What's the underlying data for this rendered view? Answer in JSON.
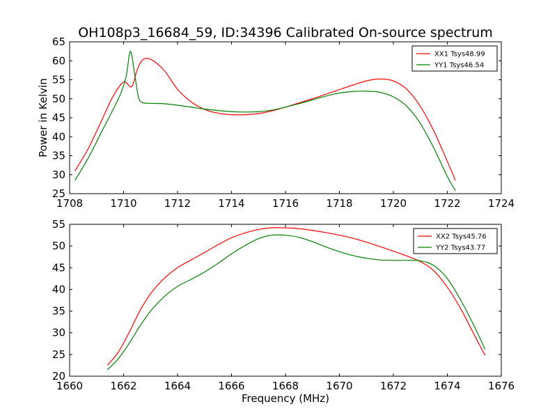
{
  "title": "OH108p3_16684_59, ID:34396 Calibrated On-source spectrum",
  "chart_data": [
    {
      "type": "line",
      "ylabel": "Power in Kelvin",
      "xlabel": "",
      "xlim": [
        1708,
        1724
      ],
      "ylim": [
        25,
        65
      ],
      "x_ticks": [
        1708,
        1710,
        1712,
        1714,
        1716,
        1718,
        1720,
        1722,
        1724
      ],
      "y_ticks": [
        25,
        30,
        35,
        40,
        45,
        50,
        55,
        60,
        65
      ],
      "legend_position": "top-right",
      "series": [
        {
          "name": "XX1 Tsys48.99",
          "color": "#ff0000",
          "points": [
            [
              1708.2,
              31
            ],
            [
              1708.7,
              37
            ],
            [
              1709.2,
              44.5
            ],
            [
              1709.6,
              50.5
            ],
            [
              1710.0,
              54.4
            ],
            [
              1710.3,
              53.2
            ],
            [
              1710.5,
              57.5
            ],
            [
              1710.7,
              60.2
            ],
            [
              1711.0,
              60.4
            ],
            [
              1711.5,
              57.5
            ],
            [
              1712.0,
              52.5
            ],
            [
              1712.5,
              49.2
            ],
            [
              1713.0,
              47.2
            ],
            [
              1713.5,
              46.2
            ],
            [
              1714.0,
              45.8
            ],
            [
              1714.5,
              45.8
            ],
            [
              1715.0,
              46.1
            ],
            [
              1715.5,
              46.8
            ],
            [
              1716.0,
              47.8
            ],
            [
              1716.5,
              48.9
            ],
            [
              1717.0,
              50.0
            ],
            [
              1717.5,
              51.2
            ],
            [
              1718.0,
              52.4
            ],
            [
              1718.5,
              53.6
            ],
            [
              1719.0,
              54.7
            ],
            [
              1719.5,
              55.2
            ],
            [
              1720.0,
              54.7
            ],
            [
              1720.5,
              52.5
            ],
            [
              1721.0,
              48.0
            ],
            [
              1721.5,
              41.5
            ],
            [
              1722.0,
              33.5
            ],
            [
              1722.3,
              28.5
            ]
          ]
        },
        {
          "name": "YY1 Tsys46.54",
          "color": "#008000",
          "points": [
            [
              1708.2,
              28.5
            ],
            [
              1708.7,
              34.5
            ],
            [
              1709.2,
              41.5
            ],
            [
              1709.6,
              47.0
            ],
            [
              1709.9,
              51.5
            ],
            [
              1710.1,
              56.0
            ],
            [
              1710.25,
              62.5
            ],
            [
              1710.4,
              57.0
            ],
            [
              1710.55,
              50.5
            ],
            [
              1710.7,
              49.0
            ],
            [
              1711.0,
              48.8
            ],
            [
              1711.5,
              48.7
            ],
            [
              1712.0,
              48.3
            ],
            [
              1712.5,
              47.8
            ],
            [
              1713.0,
              47.3
            ],
            [
              1713.5,
              46.9
            ],
            [
              1714.0,
              46.6
            ],
            [
              1714.5,
              46.5
            ],
            [
              1715.0,
              46.6
            ],
            [
              1715.5,
              47.0
            ],
            [
              1716.0,
              47.8
            ],
            [
              1716.5,
              48.7
            ],
            [
              1717.0,
              49.7
            ],
            [
              1717.5,
              50.7
            ],
            [
              1718.0,
              51.5
            ],
            [
              1718.5,
              51.9
            ],
            [
              1719.0,
              52.0
            ],
            [
              1719.5,
              51.7
            ],
            [
              1720.0,
              50.5
            ],
            [
              1720.5,
              48.0
            ],
            [
              1721.0,
              43.5
            ],
            [
              1721.5,
              37.0
            ],
            [
              1722.0,
              29.5
            ],
            [
              1722.3,
              25.8
            ]
          ]
        }
      ]
    },
    {
      "type": "line",
      "ylabel": "",
      "xlabel": "Frequency (MHz)",
      "xlim": [
        1660,
        1676
      ],
      "ylim": [
        20,
        55
      ],
      "x_ticks": [
        1660,
        1662,
        1664,
        1666,
        1668,
        1670,
        1672,
        1674,
        1676
      ],
      "y_ticks": [
        20,
        25,
        30,
        35,
        40,
        45,
        50,
        55
      ],
      "legend_position": "top-right",
      "series": [
        {
          "name": "XX2 Tsys45.76",
          "color": "#ff0000",
          "points": [
            [
              1661.4,
              22.5
            ],
            [
              1661.8,
              25.5
            ],
            [
              1662.2,
              30.0
            ],
            [
              1662.6,
              35.0
            ],
            [
              1663.0,
              39.0
            ],
            [
              1663.5,
              42.5
            ],
            [
              1664.0,
              45.0
            ],
            [
              1664.5,
              46.8
            ],
            [
              1665.0,
              48.5
            ],
            [
              1665.5,
              50.3
            ],
            [
              1666.0,
              51.9
            ],
            [
              1666.5,
              53.0
            ],
            [
              1667.0,
              53.8
            ],
            [
              1667.5,
              54.2
            ],
            [
              1668.0,
              54.2
            ],
            [
              1668.5,
              54.0
            ],
            [
              1669.0,
              53.6
            ],
            [
              1669.5,
              53.1
            ],
            [
              1670.0,
              52.5
            ],
            [
              1670.5,
              51.8
            ],
            [
              1671.0,
              50.9
            ],
            [
              1671.5,
              49.9
            ],
            [
              1672.0,
              48.8
            ],
            [
              1672.5,
              47.7
            ],
            [
              1673.0,
              46.4
            ],
            [
              1673.5,
              44.3
            ],
            [
              1674.0,
              40.5
            ],
            [
              1674.5,
              35.5
            ],
            [
              1675.0,
              29.5
            ],
            [
              1675.4,
              24.8
            ]
          ]
        },
        {
          "name": "YY2 Tsys43.77",
          "color": "#008000",
          "points": [
            [
              1661.4,
              21.5
            ],
            [
              1661.8,
              24.0
            ],
            [
              1662.2,
              27.5
            ],
            [
              1662.6,
              31.5
            ],
            [
              1663.0,
              35.0
            ],
            [
              1663.5,
              38.3
            ],
            [
              1664.0,
              40.7
            ],
            [
              1664.5,
              42.3
            ],
            [
              1665.0,
              44.0
            ],
            [
              1665.5,
              46.0
            ],
            [
              1666.0,
              48.2
            ],
            [
              1666.5,
              50.1
            ],
            [
              1667.0,
              51.7
            ],
            [
              1667.5,
              52.5
            ],
            [
              1668.0,
              52.5
            ],
            [
              1668.5,
              52.0
            ],
            [
              1669.0,
              51.0
            ],
            [
              1669.5,
              49.8
            ],
            [
              1670.0,
              48.7
            ],
            [
              1670.5,
              47.8
            ],
            [
              1671.0,
              47.2
            ],
            [
              1671.5,
              46.8
            ],
            [
              1672.0,
              46.7
            ],
            [
              1672.5,
              46.7
            ],
            [
              1673.0,
              46.6
            ],
            [
              1673.5,
              45.5
            ],
            [
              1674.0,
              42.5
            ],
            [
              1674.5,
              37.5
            ],
            [
              1675.0,
              31.5
            ],
            [
              1675.4,
              26.2
            ]
          ]
        }
      ]
    }
  ]
}
